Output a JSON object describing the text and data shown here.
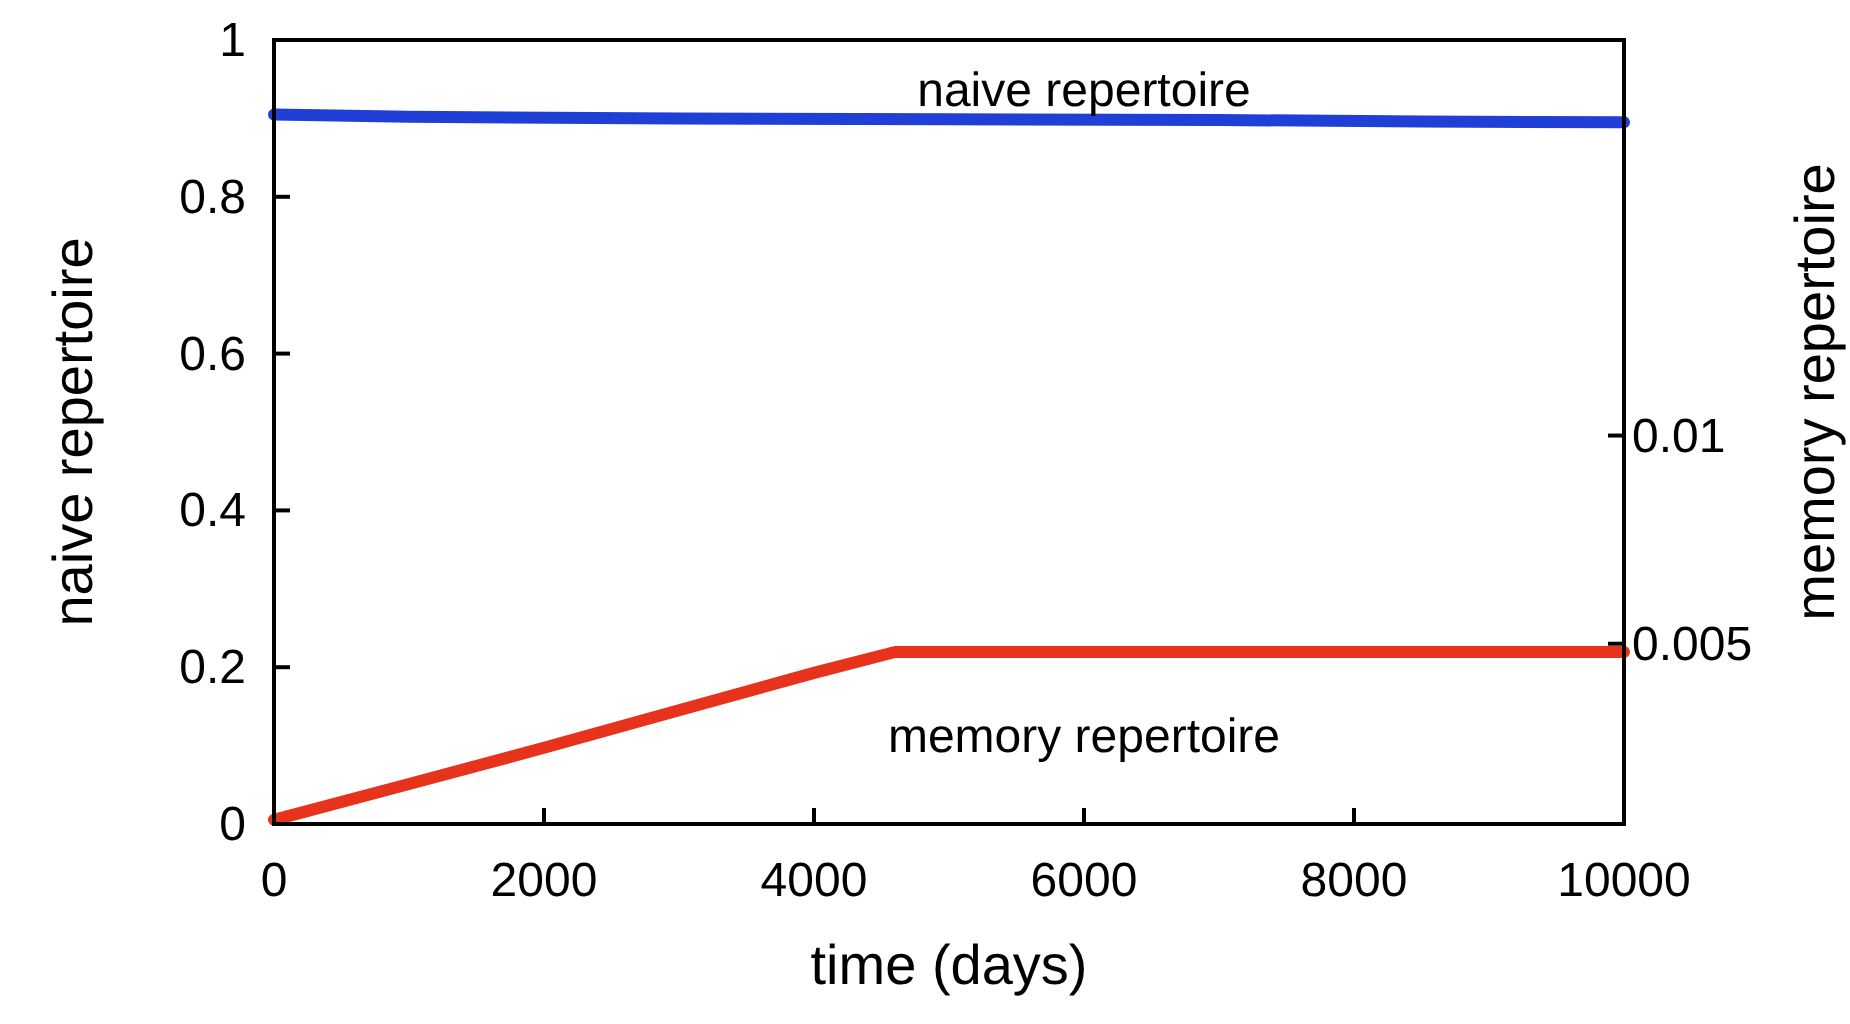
{
  "chart_data": {
    "type": "line",
    "xlabel": "time (days)",
    "ylabel": "naive repertoire",
    "y2label": "memory repertoire",
    "xlim": [
      0,
      10000
    ],
    "xticks": [
      0,
      2000,
      4000,
      6000,
      8000,
      10000
    ],
    "ylim": [
      0,
      1
    ],
    "yticks": [
      0,
      0.2,
      0.4,
      0.6,
      0.8,
      1
    ],
    "y2lim": [
      0.00067,
      0.0195
    ],
    "y2ticks": [
      0.005,
      0.01
    ],
    "series": [
      {
        "name": "naive repertoire",
        "color": "#1f3fd6",
        "x": [
          0,
          1000,
          3000,
          5000,
          7000,
          8500,
          10000
        ],
        "values": [
          0.905,
          0.902,
          0.9,
          0.899,
          0.898,
          0.896,
          0.895
        ]
      },
      {
        "name": "memory repertoire",
        "color": "#e8331c",
        "axis": "y2",
        "x": [
          0,
          1000,
          2000,
          3000,
          4000,
          4600,
          5000,
          10000
        ],
        "values": [
          0.00077,
          0.00163,
          0.0025,
          0.0034,
          0.0043,
          0.0048,
          0.0048,
          0.0048
        ]
      }
    ]
  }
}
